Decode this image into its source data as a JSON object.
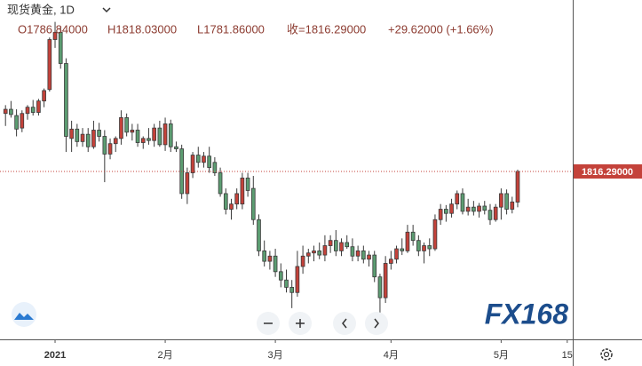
{
  "chart_data": {
    "type": "candlestick",
    "symbol": "现货黄金, 1D",
    "header": {
      "open": "O1786.84000",
      "high": "H1818.03000",
      "low": "L1781.86000",
      "close": "收=1816.29000",
      "change": "+29.62000 (+1.66%)"
    },
    "last_price": {
      "value": 1816.29,
      "label": "1816.29000"
    },
    "watermark": "FX168",
    "up_color": "#c4423a",
    "down_color": "#5c9d72",
    "xlim": [
      -1,
      103
    ],
    "ylim": [
      1655,
      1981
    ],
    "xticks": [
      {
        "value": 9,
        "label": "2021"
      },
      {
        "value": 29,
        "label": "2月"
      },
      {
        "value": 49,
        "label": "3月"
      },
      {
        "value": 70,
        "label": "4月"
      },
      {
        "value": 90,
        "label": "5月"
      },
      {
        "value": 102,
        "label": "15"
      }
    ],
    "open": [
      1872,
      1876,
      1870,
      1858,
      1872,
      1878,
      1873,
      1884,
      1895,
      1943,
      1950,
      1920,
      1848,
      1857,
      1845,
      1852,
      1840,
      1856,
      1850,
      1833,
      1843,
      1848,
      1868,
      1854,
      1856,
      1844,
      1848,
      1846,
      1858,
      1842,
      1862,
      1840,
      1838,
      1795,
      1815,
      1832,
      1825,
      1831,
      1825,
      1815,
      1795,
      1780,
      1785,
      1785,
      1810,
      1800,
      1770,
      1740,
      1730,
      1735,
      1720,
      1712,
      1705,
      1700,
      1725,
      1735,
      1738,
      1740,
      1736,
      1745,
      1750,
      1740,
      1748,
      1744,
      1735,
      1740,
      1732,
      1736,
      1715,
      1695,
      1728,
      1732,
      1742,
      1740,
      1758,
      1750,
      1740,
      1745,
      1742,
      1770,
      1780,
      1776,
      1785,
      1795,
      1778,
      1782,
      1778,
      1783,
      1779,
      1770,
      1782,
      1795,
      1780,
      1786.84
    ],
    "high": [
      1880,
      1884,
      1876,
      1875,
      1880,
      1885,
      1886,
      1896,
      1945,
      1960,
      1955,
      1925,
      1865,
      1862,
      1858,
      1858,
      1865,
      1863,
      1856,
      1848,
      1850,
      1875,
      1872,
      1862,
      1862,
      1850,
      1858,
      1862,
      1865,
      1868,
      1866,
      1845,
      1842,
      1820,
      1835,
      1840,
      1835,
      1840,
      1830,
      1820,
      1800,
      1790,
      1800,
      1815,
      1815,
      1812,
      1775,
      1750,
      1740,
      1742,
      1728,
      1722,
      1712,
      1740,
      1745,
      1742,
      1745,
      1748,
      1755,
      1755,
      1760,
      1752,
      1755,
      1752,
      1745,
      1745,
      1740,
      1740,
      1718,
      1735,
      1740,
      1745,
      1752,
      1765,
      1765,
      1755,
      1748,
      1752,
      1775,
      1785,
      1784,
      1790,
      1798,
      1800,
      1790,
      1788,
      1786,
      1788,
      1785,
      1785,
      1800,
      1799,
      1792,
      1818.03
    ],
    "low": [
      1860,
      1868,
      1850,
      1854,
      1866,
      1870,
      1870,
      1878,
      1893,
      1935,
      1915,
      1835,
      1835,
      1840,
      1840,
      1835,
      1838,
      1845,
      1806,
      1828,
      1835,
      1842,
      1850,
      1846,
      1840,
      1838,
      1842,
      1840,
      1840,
      1836,
      1835,
      1835,
      1790,
      1785,
      1810,
      1820,
      1820,
      1815,
      1812,
      1792,
      1775,
      1770,
      1780,
      1780,
      1792,
      1765,
      1735,
      1725,
      1722,
      1715,
      1705,
      1700,
      1685,
      1696,
      1718,
      1728,
      1730,
      1732,
      1730,
      1738,
      1735,
      1735,
      1742,
      1730,
      1730,
      1728,
      1725,
      1710,
      1680,
      1690,
      1722,
      1728,
      1736,
      1738,
      1745,
      1735,
      1728,
      1735,
      1740,
      1765,
      1768,
      1772,
      1780,
      1775,
      1774,
      1774,
      1772,
      1775,
      1765,
      1768,
      1770,
      1775,
      1776,
      1781.86
    ],
    "close": [
      1876,
      1871,
      1857,
      1872,
      1878,
      1873,
      1884,
      1894,
      1943,
      1950,
      1920,
      1850,
      1857,
      1845,
      1852,
      1840,
      1856,
      1850,
      1833,
      1843,
      1848,
      1868,
      1854,
      1856,
      1844,
      1848,
      1846,
      1858,
      1842,
      1862,
      1840,
      1838,
      1795,
      1815,
      1832,
      1825,
      1831,
      1820,
      1815,
      1795,
      1780,
      1785,
      1795,
      1810,
      1798,
      1770,
      1740,
      1730,
      1735,
      1720,
      1712,
      1705,
      1700,
      1725,
      1735,
      1738,
      1740,
      1736,
      1745,
      1750,
      1740,
      1748,
      1744,
      1735,
      1740,
      1732,
      1736,
      1715,
      1695,
      1728,
      1732,
      1742,
      1740,
      1758,
      1750,
      1740,
      1745,
      1742,
      1770,
      1780,
      1776,
      1785,
      1795,
      1778,
      1782,
      1778,
      1783,
      1779,
      1770,
      1782,
      1795,
      1780,
      1787,
      1816.29
    ]
  }
}
